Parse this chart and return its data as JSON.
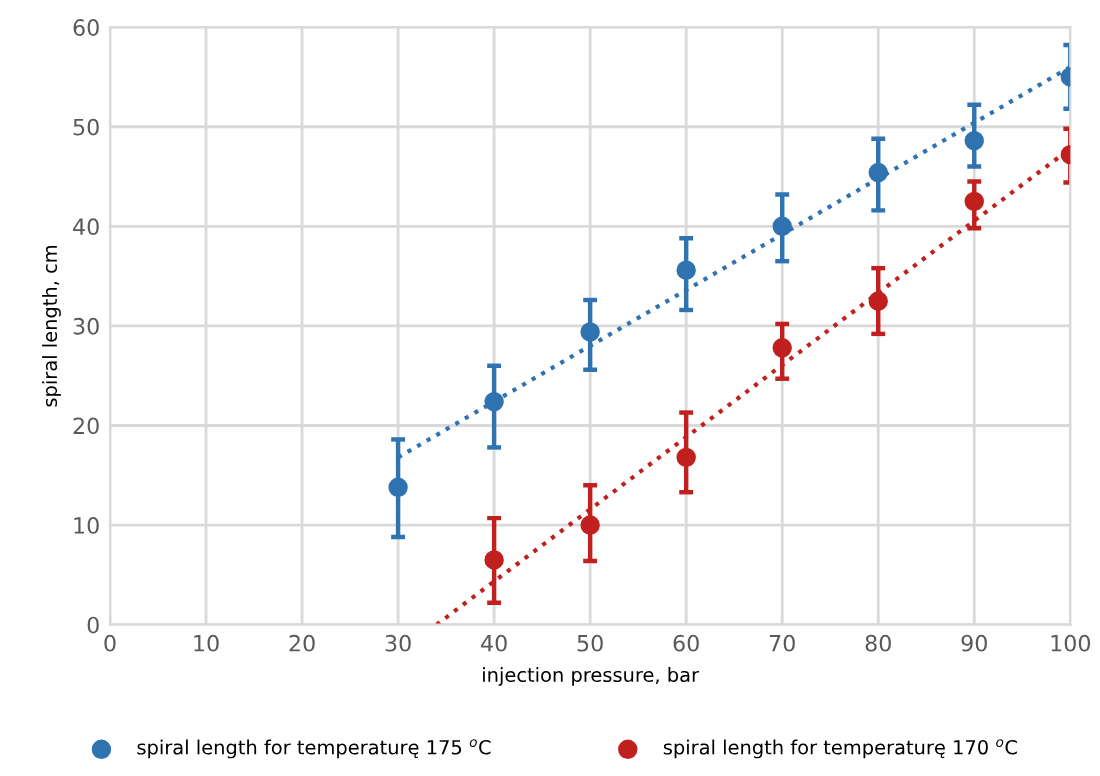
{
  "chart_data": {
    "type": "scatter",
    "xlabel": "injection pressure, bar",
    "ylabel": "spiral length, cm",
    "xlim": [
      0,
      100
    ],
    "ylim": [
      0,
      60
    ],
    "xticks": [
      0,
      10,
      20,
      30,
      40,
      50,
      60,
      70,
      80,
      90,
      100
    ],
    "yticks": [
      0,
      10,
      20,
      30,
      40,
      50,
      60
    ],
    "grid": true,
    "legend": "bottom",
    "marker": "circle",
    "series": [
      {
        "name": "spiral length for temperaturę 175 $^{o}$C",
        "color": "#2f73b0",
        "x": [
          30,
          40,
          50,
          60,
          70,
          80,
          90,
          100
        ],
        "values": [
          13.8,
          22.4,
          29.4,
          35.6,
          40,
          45.4,
          48.6,
          55
        ],
        "errors": [
          [
            8.8,
            18.6
          ],
          [
            17.8,
            26
          ],
          [
            25.6,
            32.6
          ],
          [
            31.6,
            38.8
          ],
          [
            36.5,
            43.2
          ],
          [
            41.6,
            48.8
          ],
          [
            46,
            52.2
          ],
          [
            51.8,
            58.2
          ]
        ]
      },
      {
        "name": "spiral length for temperaturę 170 $^{o}$C",
        "color": "#c0201e",
        "x": [
          40,
          50,
          60,
          70,
          80,
          90,
          100
        ],
        "values": [
          6.5,
          10,
          16.8,
          27.8,
          32.5,
          42.5,
          47.2
        ],
        "errors": [
          [
            2.2,
            10.7
          ],
          [
            6.4,
            14
          ],
          [
            13.3,
            21.3
          ],
          [
            24.7,
            30.2
          ],
          [
            29.2,
            35.8
          ],
          [
            39.8,
            44.5
          ],
          [
            44.4,
            49.8
          ]
        ]
      },
      {
        "type": "line",
        "color": "#2f73b0",
        "line_style": "dotted",
        "marker": "none",
        "x": [
          30,
          100
        ],
        "values": [
          16.8,
          56
        ]
      },
      {
        "type": "line",
        "color": "#c0201e",
        "line_style": "dotted",
        "marker": "none",
        "x": [
          34,
          100
        ],
        "values": [
          0,
          47.8
        ]
      }
    ]
  }
}
